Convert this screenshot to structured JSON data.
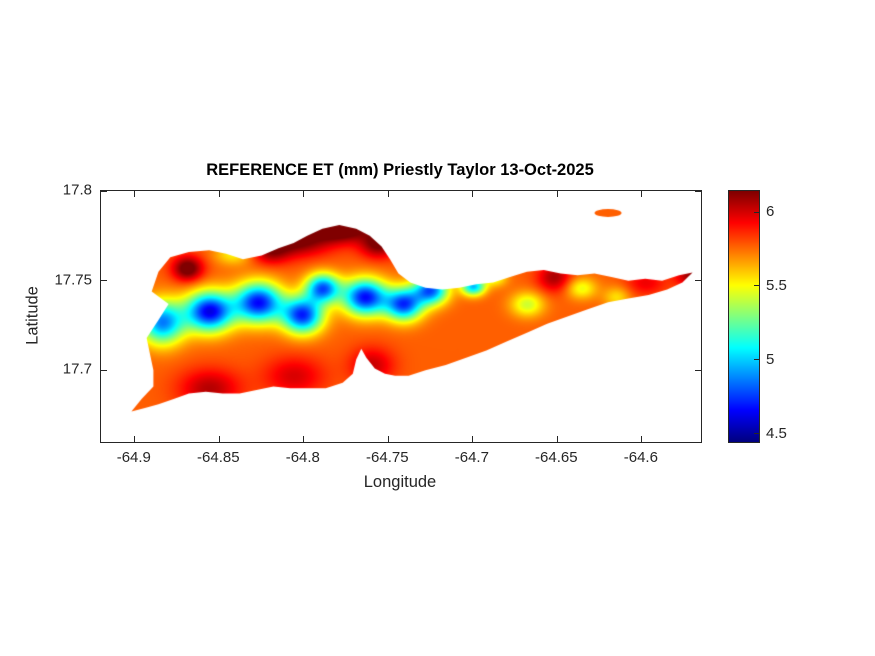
{
  "figure": {
    "background": "#ffffff",
    "axis_color": "#262626",
    "text_color": "#000000"
  },
  "chart_data": {
    "type": "heatmap",
    "title": "REFERENCE ET (mm) Priestly Taylor 13-Oct-2025",
    "xlabel": "Longitude",
    "ylabel": "Latitude",
    "units": "mm",
    "grid": false,
    "xlim": [
      -64.92,
      -64.565
    ],
    "ylim": [
      17.66,
      17.8
    ],
    "xticks": [
      -64.9,
      -64.85,
      -64.8,
      -64.75,
      -64.7,
      -64.65,
      -64.6
    ],
    "xtick_labels": [
      "-64.9",
      "-64.85",
      "-64.8",
      "-64.75",
      "-64.7",
      "-64.65",
      "-64.6"
    ],
    "yticks": [
      17.8,
      17.75,
      17.7
    ],
    "ytick_labels": [
      "17.8",
      "17.75",
      "17.7"
    ],
    "colormap": "jet",
    "clim": [
      4.45,
      6.15
    ],
    "colorbar_ticks": [
      4.5,
      5,
      5.5,
      6
    ],
    "colorbar_tick_labels": [
      "4.5",
      "5",
      "5.5",
      "6"
    ],
    "field": {
      "base": 5.78,
      "blobs": [
        {
          "lon": -64.884,
          "lat": 17.727,
          "amp": -0.9,
          "sx": 0.013,
          "sy": 0.012
        },
        {
          "lon": -64.856,
          "lat": 17.733,
          "amp": -1.15,
          "sx": 0.014,
          "sy": 0.011
        },
        {
          "lon": -64.827,
          "lat": 17.738,
          "amp": -1.1,
          "sx": 0.014,
          "sy": 0.011
        },
        {
          "lon": -64.801,
          "lat": 17.731,
          "amp": -1.05,
          "sx": 0.012,
          "sy": 0.01
        },
        {
          "lon": -64.789,
          "lat": 17.746,
          "amp": -0.95,
          "sx": 0.01,
          "sy": 0.008
        },
        {
          "lon": -64.764,
          "lat": 17.741,
          "amp": -1.1,
          "sx": 0.013,
          "sy": 0.01
        },
        {
          "lon": -64.741,
          "lat": 17.737,
          "amp": -1.0,
          "sx": 0.011,
          "sy": 0.009
        },
        {
          "lon": -64.725,
          "lat": 17.745,
          "amp": -0.95,
          "sx": 0.01,
          "sy": 0.008
        },
        {
          "lon": -64.7,
          "lat": 17.747,
          "amp": -0.8,
          "sx": 0.007,
          "sy": 0.005
        },
        {
          "lon": -64.805,
          "lat": 17.773,
          "amp": 0.42,
          "sx": 0.02,
          "sy": 0.009
        },
        {
          "lon": -64.778,
          "lat": 17.78,
          "amp": 0.52,
          "sx": 0.016,
          "sy": 0.008
        },
        {
          "lon": -64.756,
          "lat": 17.771,
          "amp": 0.4,
          "sx": 0.011,
          "sy": 0.008
        },
        {
          "lon": -64.82,
          "lat": 17.766,
          "amp": 0.25,
          "sx": 0.011,
          "sy": 0.007
        },
        {
          "lon": -64.869,
          "lat": 17.757,
          "amp": 0.45,
          "sx": 0.009,
          "sy": 0.007
        },
        {
          "lon": -64.856,
          "lat": 17.69,
          "amp": 0.28,
          "sx": 0.018,
          "sy": 0.011
        },
        {
          "lon": -64.806,
          "lat": 17.697,
          "amp": 0.22,
          "sx": 0.018,
          "sy": 0.011
        },
        {
          "lon": -64.76,
          "lat": 17.703,
          "amp": 0.25,
          "sx": 0.013,
          "sy": 0.01
        },
        {
          "lon": -64.652,
          "lat": 17.752,
          "amp": 0.3,
          "sx": 0.01,
          "sy": 0.008
        },
        {
          "lon": -64.598,
          "lat": 17.749,
          "amp": 0.18,
          "sx": 0.012,
          "sy": 0.007
        },
        {
          "lon": -64.57,
          "lat": 17.753,
          "amp": 0.35,
          "sx": 0.01,
          "sy": 0.006
        },
        {
          "lon": -64.668,
          "lat": 17.737,
          "amp": -0.35,
          "sx": 0.01,
          "sy": 0.007
        },
        {
          "lon": -64.636,
          "lat": 17.746,
          "amp": -0.3,
          "sx": 0.009,
          "sy": 0.006
        },
        {
          "lon": -64.687,
          "lat": 17.752,
          "amp": -0.3,
          "sx": 0.007,
          "sy": 0.005
        },
        {
          "lon": -64.615,
          "lat": 17.741,
          "amp": -0.22,
          "sx": 0.008,
          "sy": 0.006
        },
        {
          "lon": -64.842,
          "lat": 17.765,
          "amp": -0.25,
          "sx": 0.011,
          "sy": 0.006
        }
      ]
    },
    "island_outline": [
      [
        -64.902,
        17.677
      ],
      [
        -64.896,
        17.684
      ],
      [
        -64.889,
        17.691
      ],
      [
        -64.889,
        17.7
      ],
      [
        -64.891,
        17.709
      ],
      [
        -64.893,
        17.718
      ],
      [
        -64.886,
        17.728
      ],
      [
        -64.88,
        17.737
      ],
      [
        -64.89,
        17.744
      ],
      [
        -64.886,
        17.755
      ],
      [
        -64.879,
        17.763
      ],
      [
        -64.868,
        17.766
      ],
      [
        -64.856,
        17.767
      ],
      [
        -64.846,
        17.765
      ],
      [
        -64.836,
        17.762
      ],
      [
        -64.825,
        17.764
      ],
      [
        -64.815,
        17.768
      ],
      [
        -64.806,
        17.771
      ],
      [
        -64.798,
        17.775
      ],
      [
        -64.789,
        17.779
      ],
      [
        -64.779,
        17.781
      ],
      [
        -64.769,
        17.779
      ],
      [
        -64.761,
        17.775
      ],
      [
        -64.754,
        17.769
      ],
      [
        -64.749,
        17.762
      ],
      [
        -64.744,
        17.754
      ],
      [
        -64.737,
        17.749
      ],
      [
        -64.728,
        17.746
      ],
      [
        -64.718,
        17.745
      ],
      [
        -64.708,
        17.746
      ],
      [
        -64.698,
        17.748
      ],
      [
        -64.688,
        17.749
      ],
      [
        -64.678,
        17.752
      ],
      [
        -64.668,
        17.755
      ],
      [
        -64.658,
        17.756
      ],
      [
        -64.648,
        17.754
      ],
      [
        -64.638,
        17.753
      ],
      [
        -64.628,
        17.754
      ],
      [
        -64.618,
        17.752
      ],
      [
        -64.608,
        17.75
      ],
      [
        -64.598,
        17.751
      ],
      [
        -64.588,
        17.75
      ],
      [
        -64.578,
        17.753
      ],
      [
        -64.57,
        17.7545
      ],
      [
        -64.576,
        17.749
      ],
      [
        -64.585,
        17.745
      ],
      [
        -64.596,
        17.742
      ],
      [
        -64.608,
        17.74
      ],
      [
        -64.62,
        17.738
      ],
      [
        -64.632,
        17.734
      ],
      [
        -64.644,
        17.73
      ],
      [
        -64.656,
        17.726
      ],
      [
        -64.668,
        17.721
      ],
      [
        -64.68,
        17.716
      ],
      [
        -64.692,
        17.711
      ],
      [
        -64.704,
        17.707
      ],
      [
        -64.716,
        17.703
      ],
      [
        -64.728,
        17.7
      ],
      [
        -64.738,
        17.697
      ],
      [
        -64.746,
        17.697
      ],
      [
        -64.752,
        17.698
      ],
      [
        -64.758,
        17.701
      ],
      [
        -64.763,
        17.707
      ],
      [
        -64.766,
        17.712
      ],
      [
        -64.769,
        17.706
      ],
      [
        -64.771,
        17.698
      ],
      [
        -64.777,
        17.693
      ],
      [
        -64.787,
        17.69
      ],
      [
        -64.797,
        17.69
      ],
      [
        -64.808,
        17.69
      ],
      [
        -64.818,
        17.691
      ],
      [
        -64.828,
        17.689
      ],
      [
        -64.838,
        17.687
      ],
      [
        -64.848,
        17.687
      ],
      [
        -64.858,
        17.688
      ],
      [
        -64.868,
        17.687
      ],
      [
        -64.877,
        17.684
      ],
      [
        -64.886,
        17.681
      ],
      [
        -64.894,
        17.679
      ]
    ],
    "islet": {
      "lon": -64.62,
      "lat": 17.7877,
      "rx": 0.008,
      "ry": 0.0022
    }
  }
}
